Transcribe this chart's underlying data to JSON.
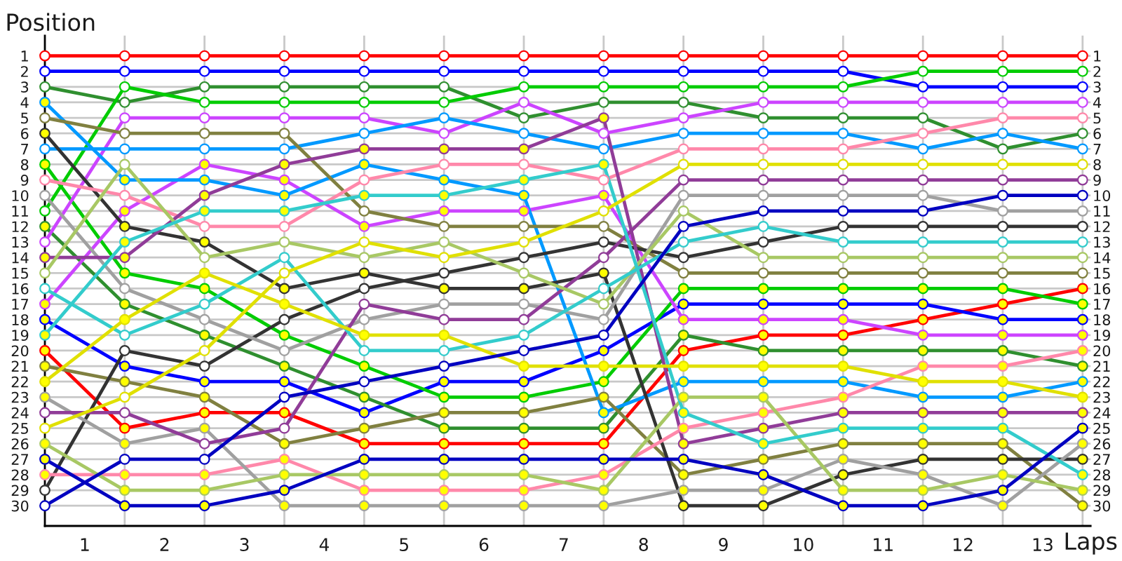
{
  "chart_data": {
    "type": "line",
    "xlabel": "Laps",
    "ylabel": "Position",
    "x": [
      0,
      1,
      2,
      3,
      4,
      5,
      6,
      7,
      8,
      9,
      10,
      11,
      12,
      13
    ],
    "xlim": [
      0,
      13.1
    ],
    "xticks": [
      {
        "value": 0.5,
        "label": "1"
      },
      {
        "value": 1,
        "label": null
      },
      {
        "value": 1.5,
        "label": "2"
      },
      {
        "value": 2,
        "label": null
      },
      {
        "value": 2.5,
        "label": "3"
      },
      {
        "value": 3,
        "label": null
      },
      {
        "value": 3.5,
        "label": "4"
      },
      {
        "value": 4,
        "label": null
      },
      {
        "value": 4.5,
        "label": "5"
      },
      {
        "value": 5,
        "label": null
      },
      {
        "value": 5.5,
        "label": "6"
      },
      {
        "value": 6,
        "label": null
      },
      {
        "value": 6.5,
        "label": "7"
      },
      {
        "value": 7,
        "label": null
      },
      {
        "value": 7.5,
        "label": "8"
      },
      {
        "value": 8,
        "label": null
      },
      {
        "value": 8.5,
        "label": "9"
      },
      {
        "value": 9,
        "label": null
      },
      {
        "value": 9.5,
        "label": "10"
      },
      {
        "value": 10,
        "label": null
      },
      {
        "value": 10.5,
        "label": "11"
      },
      {
        "value": 11,
        "label": null
      },
      {
        "value": 11.5,
        "label": "12"
      },
      {
        "value": 12,
        "label": null
      },
      {
        "value": 12.5,
        "label": "13"
      },
      {
        "value": 13,
        "label": null
      }
    ],
    "ylim": [
      31.3,
      -0.3
    ],
    "yticks": [
      1,
      2,
      3,
      4,
      5,
      6,
      7,
      8,
      9,
      10,
      11,
      12,
      13,
      14,
      15,
      16,
      17,
      18,
      19,
      20,
      21,
      22,
      23,
      24,
      25,
      26,
      27,
      28,
      29,
      30
    ],
    "y2lim": [
      31.3,
      -0.3
    ],
    "y2ticks": [
      1,
      2,
      3,
      4,
      5,
      6,
      7,
      8,
      9,
      10,
      11,
      12,
      13,
      14,
      15,
      16,
      17,
      18,
      19,
      20,
      21,
      22,
      23,
      24,
      25,
      26,
      27,
      28,
      29,
      30
    ],
    "grid": true,
    "marker": "circle",
    "series": [
      {
        "color": "#ff0000",
        "values": [
          1,
          1,
          1,
          1,
          1,
          1,
          1,
          1,
          1,
          1,
          1,
          1,
          1,
          1
        ],
        "colors": [
          "#ffffff",
          "#ffffff",
          "#ffffff",
          "#ffffff",
          "#ffffff",
          "#ffffff",
          "#ffffff",
          "#ffffff",
          "#ffffff",
          "#ffffff",
          "#ffffff",
          "#ffffff",
          "#ffffff",
          "#ffffff"
        ]
      },
      {
        "color": "#ff0000",
        "values": [
          20,
          25,
          24,
          24,
          26,
          26,
          26,
          26,
          20,
          19,
          19,
          18,
          17,
          16
        ],
        "colors": [
          "#ffff00",
          "#ffff00",
          "#ffff00",
          "#ffff00",
          "#ffff00",
          "#ffff00",
          "#ffff00",
          "#ffff00",
          "#ffff00",
          "#ffff00",
          "#ffff00",
          "#ffff00",
          "#ffff00",
          "#ffff00"
        ]
      },
      {
        "color": "#0000ff",
        "values": [
          2,
          2,
          2,
          2,
          2,
          2,
          2,
          2,
          2,
          2,
          2,
          3,
          3,
          3
        ],
        "colors": [
          "#ffffff",
          "#ffffff",
          "#ffffff",
          "#ffffff",
          "#ffffff",
          "#ffffff",
          "#ffffff",
          "#ffffff",
          "#ffffff",
          "#ffffff",
          "#ffffff",
          "#ffffff",
          "#ffffff",
          "#ffffff"
        ]
      },
      {
        "color": "#0000ff",
        "values": [
          18,
          21,
          22,
          22,
          24,
          22,
          22,
          20,
          17,
          17,
          17,
          17,
          18,
          18
        ],
        "colors": [
          "#ffff00",
          "#ffff00",
          "#ffff00",
          "#ffff00",
          "#ffff00",
          "#ffff00",
          "#ffff00",
          "#ffff00",
          "#ffff00",
          "#ffff00",
          "#ffff00",
          "#ffff00",
          "#ffff00",
          "#ffff00"
        ]
      },
      {
        "color": "#2f8f2f",
        "values": [
          3,
          4,
          3,
          3,
          3,
          3,
          5,
          4,
          4,
          5,
          5,
          5,
          7,
          6
        ],
        "colors": [
          "#ffffff",
          "#ffffff",
          "#ffffff",
          "#ffffff",
          "#ffffff",
          "#ffffff",
          "#ffffff",
          "#ffffff",
          "#ffffff",
          "#ffffff",
          "#ffffff",
          "#ffffff",
          "#ffffff",
          "#ffffff"
        ]
      },
      {
        "color": "#2f8f2f",
        "values": [
          12,
          17,
          19,
          21,
          23,
          25,
          25,
          25,
          19,
          20,
          20,
          20,
          20,
          21
        ],
        "colors": [
          "#ffff00",
          "#ffff00",
          "#ffff00",
          "#ffff00",
          "#ffff00",
          "#ffff00",
          "#ffff00",
          "#ffff00",
          "#ffff00",
          "#ffff00",
          "#ffff00",
          "#ffff00",
          "#ffff00",
          "#ffff00"
        ]
      },
      {
        "color": "#00cc00",
        "values": [
          11,
          3,
          4,
          4,
          4,
          4,
          3,
          3,
          3,
          3,
          3,
          2,
          2,
          2
        ],
        "colors": [
          "#ffffff",
          "#ffffff",
          "#ffffff",
          "#ffffff",
          "#ffffff",
          "#ffffff",
          "#ffffff",
          "#ffffff",
          "#ffffff",
          "#ffffff",
          "#ffffff",
          "#ffffff",
          "#ffffff",
          "#ffffff"
        ]
      },
      {
        "color": "#00cc00",
        "values": [
          8,
          15,
          16,
          19,
          21,
          23,
          23,
          22,
          16,
          16,
          16,
          16,
          16,
          17
        ],
        "colors": [
          "#ffff00",
          "#ffff00",
          "#ffff00",
          "#ffff00",
          "#ffff00",
          "#ffff00",
          "#ffff00",
          "#ffff00",
          "#ffff00",
          "#ffff00",
          "#ffff00",
          "#ffff00",
          "#ffff00",
          "#ffff00"
        ]
      },
      {
        "color": "#cc44ff",
        "values": [
          13,
          5,
          5,
          5,
          5,
          6,
          4,
          6,
          5,
          4,
          4,
          4,
          4,
          4
        ],
        "colors": [
          "#ffffff",
          "#ffffff",
          "#ffffff",
          "#ffffff",
          "#ffffff",
          "#ffffff",
          "#ffffff",
          "#ffffff",
          "#ffffff",
          "#ffffff",
          "#ffffff",
          "#ffffff",
          "#ffffff",
          "#ffffff"
        ]
      },
      {
        "color": "#cc44ff",
        "values": [
          17,
          11,
          8,
          9,
          12,
          11,
          11,
          10,
          18,
          18,
          18,
          19,
          19,
          19
        ],
        "colors": [
          "#ffff00",
          "#ffff00",
          "#ffff00",
          "#ffff00",
          "#ffff00",
          "#ffff00",
          "#ffff00",
          "#ffff00",
          "#ffff00",
          "#ffff00",
          "#ffff00",
          "#ffff00",
          "#ffff00",
          "#ffff00"
        ]
      },
      {
        "color": "#0099ff",
        "values": [
          7,
          7,
          7,
          7,
          6,
          5,
          6,
          7,
          6,
          6,
          6,
          7,
          6,
          7
        ],
        "colors": [
          "#ffffff",
          "#ffffff",
          "#ffffff",
          "#ffffff",
          "#ffffff",
          "#ffffff",
          "#ffffff",
          "#ffffff",
          "#ffffff",
          "#ffffff",
          "#ffffff",
          "#ffffff",
          "#ffffff",
          "#ffffff"
        ]
      },
      {
        "color": "#0099ff",
        "values": [
          4,
          9,
          9,
          10,
          8,
          9,
          10,
          24,
          22,
          22,
          22,
          23,
          23,
          22
        ],
        "colors": [
          "#ffff00",
          "#ffff00",
          "#ffff00",
          "#ffff00",
          "#ffff00",
          "#ffff00",
          "#ffff00",
          "#ffff00",
          "#ffff00",
          "#ffff00",
          "#ffff00",
          "#ffff00",
          "#ffff00",
          "#ffff00"
        ]
      },
      {
        "color": "#808040",
        "values": [
          5,
          6,
          6,
          6,
          11,
          12,
          12,
          12,
          15,
          15,
          15,
          15,
          15,
          15
        ],
        "colors": [
          "#ffffff",
          "#ffffff",
          "#ffffff",
          "#ffffff",
          "#ffffff",
          "#ffffff",
          "#ffffff",
          "#ffffff",
          "#ffffff",
          "#ffffff",
          "#ffffff",
          "#ffffff",
          "#ffffff",
          "#ffffff"
        ]
      },
      {
        "color": "#808040",
        "values": [
          21,
          22,
          23,
          26,
          25,
          24,
          24,
          23,
          28,
          27,
          26,
          26,
          26,
          30
        ],
        "colors": [
          "#ffff00",
          "#ffff00",
          "#ffff00",
          "#ffff00",
          "#ffff00",
          "#ffff00",
          "#ffff00",
          "#ffff00",
          "#ffff00",
          "#ffff00",
          "#ffff00",
          "#ffff00",
          "#ffff00",
          "#ffff00"
        ]
      },
      {
        "color": "#333333",
        "values": [
          6,
          12,
          13,
          16,
          15,
          16,
          16,
          15,
          30,
          30,
          28,
          27,
          27,
          27
        ],
        "colors": [
          "#ffff00",
          "#ffff00",
          "#ffff00",
          "#ffff00",
          "#ffff00",
          "#ffff00",
          "#ffff00",
          "#ffff00",
          "#ffff00",
          "#ffff00",
          "#ffff00",
          "#ffff00",
          "#ffff00",
          "#ffff00"
        ]
      },
      {
        "color": "#333333",
        "values": [
          29,
          20,
          21,
          18,
          16,
          15,
          14,
          13,
          14,
          13,
          12,
          12,
          12,
          12
        ],
        "colors": [
          "#ffffff",
          "#ffffff",
          "#ffffff",
          "#ffffff",
          "#ffffff",
          "#ffffff",
          "#ffffff",
          "#ffffff",
          "#ffffff",
          "#ffffff",
          "#ffffff",
          "#ffffff",
          "#ffffff",
          "#ffffff"
        ]
      },
      {
        "color": "#ff88aa",
        "values": [
          9,
          10,
          12,
          12,
          9,
          8,
          8,
          9,
          7,
          7,
          7,
          6,
          5,
          5
        ],
        "colors": [
          "#ffffff",
          "#ffffff",
          "#ffffff",
          "#ffffff",
          "#ffffff",
          "#ffffff",
          "#ffffff",
          "#ffffff",
          "#ffffff",
          "#ffffff",
          "#ffffff",
          "#ffffff",
          "#ffffff",
          "#ffffff"
        ]
      },
      {
        "color": "#ff88aa",
        "values": [
          28,
          28,
          28,
          27,
          29,
          29,
          29,
          28,
          25,
          24,
          23,
          21,
          21,
          20
        ],
        "colors": [
          "#ffff00",
          "#ffff00",
          "#ffff00",
          "#ffff00",
          "#ffff00",
          "#ffff00",
          "#ffff00",
          "#ffff00",
          "#ffff00",
          "#ffff00",
          "#ffff00",
          "#ffff00",
          "#ffff00",
          "#ffff00"
        ]
      },
      {
        "color": "#a0a0a0",
        "values": [
          10,
          16,
          18,
          20,
          18,
          17,
          17,
          18,
          10,
          10,
          10,
          10,
          11,
          11
        ],
        "colors": [
          "#ffffff",
          "#ffffff",
          "#ffffff",
          "#ffffff",
          "#ffffff",
          "#ffffff",
          "#ffffff",
          "#ffffff",
          "#ffffff",
          "#ffffff",
          "#ffffff",
          "#ffffff",
          "#ffffff",
          "#ffffff"
        ]
      },
      {
        "color": "#a0a0a0",
        "values": [
          23,
          26,
          25,
          30,
          30,
          30,
          30,
          30,
          29,
          29,
          27,
          28,
          30,
          26
        ],
        "colors": [
          "#ffff00",
          "#ffff00",
          "#ffff00",
          "#ffff00",
          "#ffff00",
          "#ffff00",
          "#ffff00",
          "#ffff00",
          "#ffff00",
          "#ffff00",
          "#ffff00",
          "#ffff00",
          "#ffff00",
          "#ffff00"
        ]
      },
      {
        "color": "#903c98",
        "values": [
          14,
          14,
          10,
          8,
          7,
          7,
          7,
          5,
          26,
          25,
          24,
          24,
          24,
          24
        ],
        "colors": [
          "#ffff00",
          "#ffff00",
          "#ffff00",
          "#ffff00",
          "#ffff00",
          "#ffff00",
          "#ffff00",
          "#ffff00",
          "#ffff00",
          "#ffff00",
          "#ffff00",
          "#ffff00",
          "#ffff00",
          "#ffff00"
        ]
      },
      {
        "color": "#903c98",
        "values": [
          24,
          24,
          26,
          25,
          17,
          18,
          18,
          14,
          9,
          9,
          9,
          9,
          9,
          9
        ],
        "colors": [
          "#ffffff",
          "#ffffff",
          "#ffffff",
          "#ffffff",
          "#ffffff",
          "#ffffff",
          "#ffffff",
          "#ffffff",
          "#ffffff",
          "#ffffff",
          "#ffffff",
          "#ffffff",
          "#ffffff",
          "#ffffff"
        ]
      },
      {
        "color": "#a8c864",
        "values": [
          15,
          8,
          14,
          13,
          14,
          13,
          15,
          17,
          11,
          14,
          14,
          14,
          14,
          14
        ],
        "colors": [
          "#ffffff",
          "#ffffff",
          "#ffffff",
          "#ffffff",
          "#ffffff",
          "#ffffff",
          "#ffffff",
          "#ffffff",
          "#ffffff",
          "#ffffff",
          "#ffffff",
          "#ffffff",
          "#ffffff",
          "#ffffff"
        ]
      },
      {
        "color": "#a8c864",
        "values": [
          26,
          29,
          29,
          28,
          28,
          28,
          28,
          29,
          23,
          23,
          29,
          29,
          28,
          29
        ],
        "colors": [
          "#ffff00",
          "#ffff00",
          "#ffff00",
          "#ffff00",
          "#ffff00",
          "#ffff00",
          "#ffff00",
          "#ffff00",
          "#ffff00",
          "#ffff00",
          "#ffff00",
          "#ffff00",
          "#ffff00",
          "#ffff00"
        ]
      },
      {
        "color": "#33cccc",
        "values": [
          16,
          19,
          17,
          14,
          20,
          20,
          19,
          16,
          13,
          12,
          13,
          13,
          13,
          13
        ],
        "colors": [
          "#ffffff",
          "#ffffff",
          "#ffffff",
          "#ffffff",
          "#ffffff",
          "#ffffff",
          "#ffffff",
          "#ffffff",
          "#ffffff",
          "#ffffff",
          "#ffffff",
          "#ffffff",
          "#ffffff",
          "#ffffff"
        ]
      },
      {
        "color": "#33cccc",
        "values": [
          19,
          13,
          11,
          11,
          10,
          10,
          9,
          8,
          24,
          26,
          25,
          25,
          25,
          28
        ],
        "colors": [
          "#ffff00",
          "#ffff00",
          "#ffff00",
          "#ffff00",
          "#ffff00",
          "#ffff00",
          "#ffff00",
          "#ffff00",
          "#ffff00",
          "#ffff00",
          "#ffff00",
          "#ffff00",
          "#ffff00",
          "#ffff00"
        ]
      },
      {
        "color": "#e0e000",
        "values": [
          22,
          18,
          15,
          17,
          19,
          19,
          21,
          21,
          21,
          21,
          21,
          22,
          22,
          23
        ],
        "colors": [
          "#ffff00",
          "#ffff00",
          "#ffff00",
          "#ffff00",
          "#ffff00",
          "#ffff00",
          "#ffff00",
          "#ffff00",
          "#ffff00",
          "#ffff00",
          "#ffff00",
          "#ffff00",
          "#ffff00",
          "#ffff00"
        ]
      },
      {
        "color": "#e0e000",
        "values": [
          25,
          23,
          20,
          15,
          13,
          14,
          13,
          11,
          8,
          8,
          8,
          8,
          8,
          8
        ],
        "colors": [
          "#ffffff",
          "#ffffff",
          "#ffffff",
          "#ffffff",
          "#ffffff",
          "#ffffff",
          "#ffffff",
          "#ffffff",
          "#ffffff",
          "#ffffff",
          "#ffffff",
          "#ffffff",
          "#ffffff",
          "#ffffff"
        ]
      },
      {
        "color": "#0000c0",
        "values": [
          30,
          27,
          27,
          23,
          22,
          21,
          20,
          19,
          12,
          11,
          11,
          11,
          10,
          10
        ],
        "colors": [
          "#ffffff",
          "#ffffff",
          "#ffffff",
          "#ffffff",
          "#ffffff",
          "#ffffff",
          "#ffffff",
          "#ffffff",
          "#ffffff",
          "#ffffff",
          "#ffffff",
          "#ffffff",
          "#ffffff",
          "#ffffff"
        ]
      },
      {
        "color": "#0000c0",
        "values": [
          27,
          30,
          30,
          29,
          27,
          27,
          27,
          27,
          27,
          28,
          30,
          30,
          29,
          25
        ],
        "colors": [
          "#ffff00",
          "#ffff00",
          "#ffff00",
          "#ffff00",
          "#ffff00",
          "#ffff00",
          "#ffff00",
          "#ffff00",
          "#ffff00",
          "#ffff00",
          "#ffff00",
          "#ffff00",
          "#ffff00",
          "#ffff00"
        ]
      }
    ]
  }
}
